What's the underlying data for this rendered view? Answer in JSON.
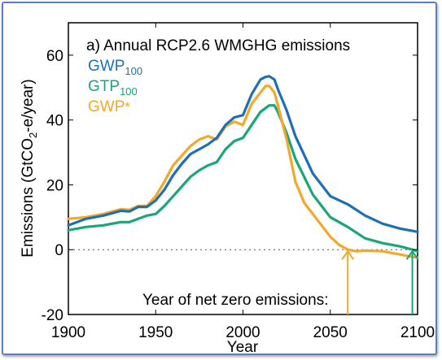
{
  "chart_data": {
    "type": "line",
    "title": "a) Annual RCP2.6 WMGHG emissions",
    "xlabel": "Year",
    "ylabel": "Emissions (GtCO₂-e/year)",
    "ylabel_parts": {
      "pre": "Emissions (GtCO",
      "sub": "2",
      "post": "-e/year)"
    },
    "xlim": [
      1900,
      2100
    ],
    "ylim": [
      -20,
      70
    ],
    "xticks": [
      1900,
      1950,
      2000,
      2050,
      2100
    ],
    "yticks": [
      -20,
      0,
      20,
      40,
      60
    ],
    "zero_line": true,
    "annotation": "Year of net zero emissions:",
    "net_zero_markers": [
      {
        "series": "GWP*",
        "year": 2060
      },
      {
        "series": "GTP100",
        "year": 2097
      }
    ],
    "legend_placement": "top-left",
    "series": [
      {
        "name": "GWP100",
        "legend": {
          "base": "GWP",
          "sub": "100",
          "sup": ""
        },
        "color": "#1f6fb6",
        "x": [
          1900,
          1910,
          1920,
          1930,
          1935,
          1940,
          1945,
          1950,
          1955,
          1960,
          1965,
          1970,
          1975,
          1980,
          1985,
          1990,
          1995,
          2000,
          2005,
          2010,
          2013,
          2015,
          2018,
          2020,
          2025,
          2030,
          2040,
          2050,
          2060,
          2070,
          2080,
          2090,
          2100
        ],
        "y": [
          7.5,
          9.5,
          10.5,
          12,
          11.8,
          13.2,
          13.2,
          15.2,
          18.5,
          23,
          26.5,
          29.5,
          31,
          32.5,
          34.5,
          38.5,
          40.8,
          41.5,
          48,
          52.5,
          53.3,
          53.5,
          52.5,
          49.5,
          43,
          35,
          23.5,
          16.5,
          14,
          10.5,
          8,
          6.5,
          5.5
        ]
      },
      {
        "name": "GTP100",
        "legend": {
          "base": "GTP",
          "sub": "100",
          "sup": ""
        },
        "color": "#1aa57a",
        "x": [
          1900,
          1910,
          1920,
          1930,
          1935,
          1940,
          1945,
          1950,
          1955,
          1960,
          1965,
          1970,
          1975,
          1980,
          1985,
          1990,
          1995,
          2000,
          2005,
          2010,
          2015,
          2018,
          2020,
          2025,
          2030,
          2040,
          2050,
          2060,
          2070,
          2080,
          2090,
          2097,
          2100
        ],
        "y": [
          6,
          7,
          7.5,
          8.5,
          8.5,
          9.5,
          10.5,
          11,
          13.5,
          16.5,
          19.5,
          22.5,
          24.5,
          26,
          27,
          31,
          33.5,
          34.5,
          38.5,
          42.5,
          44.5,
          44.5,
          42.5,
          36,
          28,
          17,
          10,
          7,
          3.5,
          2,
          1,
          0,
          -0.5
        ]
      },
      {
        "name": "GWP*",
        "legend": {
          "base": "GWP",
          "sub": "",
          "sup": "*"
        },
        "color": "#f4a82a",
        "x": [
          1900,
          1910,
          1920,
          1930,
          1935,
          1940,
          1945,
          1950,
          1955,
          1960,
          1965,
          1970,
          1975,
          1980,
          1985,
          1990,
          1995,
          2000,
          2005,
          2010,
          2013,
          2015,
          2018,
          2020,
          2025,
          2030,
          2035,
          2040,
          2045,
          2050,
          2055,
          2060,
          2065,
          2070,
          2080,
          2090,
          2100
        ],
        "y": [
          9.5,
          10,
          11,
          12.5,
          12.3,
          13.5,
          13.5,
          16.5,
          21,
          26,
          29,
          32,
          34,
          35,
          34,
          38,
          39.5,
          38.5,
          45,
          48.5,
          50.5,
          50.5,
          48.5,
          44.5,
          34,
          21,
          14.5,
          11,
          7.5,
          4,
          1.5,
          0,
          -0.5,
          -0.3,
          -0.5,
          -1.5,
          -2.5
        ]
      }
    ]
  }
}
